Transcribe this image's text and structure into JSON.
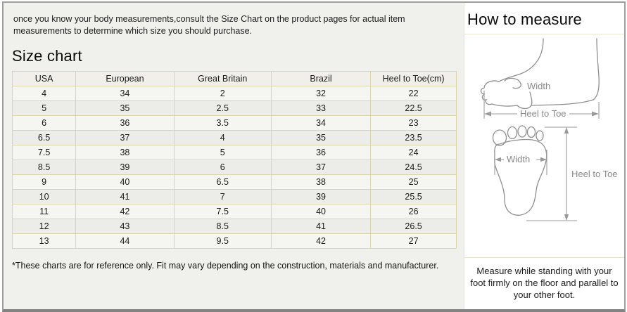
{
  "intro": {
    "text": "once you know your body measurements,consult the Size Chart on the product pages for actual item measurements to determine which size you should purchase."
  },
  "size_chart": {
    "title": "Size chart",
    "columns": [
      "USA",
      "European",
      "Great Britain",
      "Brazil",
      "Heel to Toe(cm)"
    ],
    "rows": [
      [
        "4",
        "34",
        "2",
        "32",
        "22"
      ],
      [
        "5",
        "35",
        "2.5",
        "33",
        "22.5"
      ],
      [
        "6",
        "36",
        "3.5",
        "34",
        "23"
      ],
      [
        "6.5",
        "37",
        "4",
        "35",
        "23.5"
      ],
      [
        "7.5",
        "38",
        "5",
        "36",
        "24"
      ],
      [
        "8.5",
        "39",
        "6",
        "37",
        "24.5"
      ],
      [
        "9",
        "40",
        "6.5",
        "38",
        "25"
      ],
      [
        "10",
        "41",
        "7",
        "39",
        "25.5"
      ],
      [
        "11",
        "42",
        "7.5",
        "40",
        "26"
      ],
      [
        "12",
        "43",
        "8.5",
        "41",
        "26.5"
      ],
      [
        "13",
        "44",
        "9.5",
        "42",
        "27"
      ]
    ],
    "footnote": "*These charts are for reference only. Fit may vary depending on the construction, materials and manufacturer."
  },
  "how_to_measure": {
    "title": "How to measure",
    "diagrams": {
      "side_view": {
        "width_label": "Width",
        "length_label": "Heel to Toe"
      },
      "top_view": {
        "width_label": "Width",
        "length_label": "Heel to Toe"
      }
    },
    "instruction": "Measure while standing with your foot firmly on the floor and parallel to your other foot."
  },
  "colors": {
    "left_panel_bg": "#f0f0ed",
    "table_border": "#d3cc9e",
    "table_inner_border": "#dcd6ae",
    "section_divider": "#e9e6d2",
    "diagram_stroke": "#8f8f8f"
  }
}
